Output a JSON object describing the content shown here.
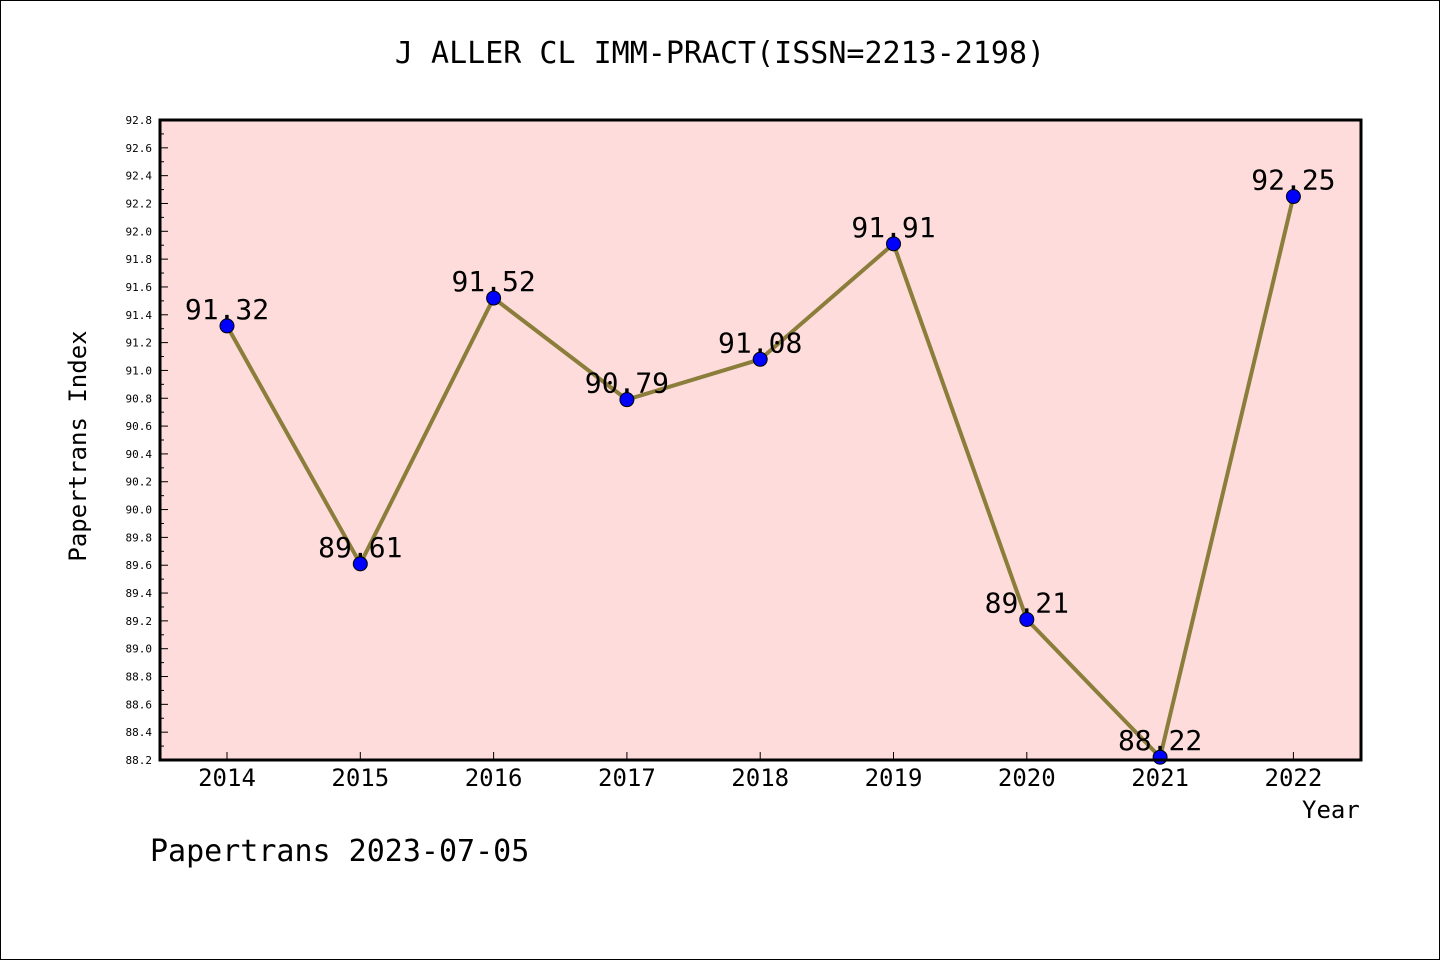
{
  "chart_data": {
    "type": "line",
    "title": "J ALLER CL IMM-PRACT(ISSN=2213-2198)",
    "xlabel": "Year",
    "ylabel": "Papertrans Index",
    "categories": [
      "2014",
      "2015",
      "2016",
      "2017",
      "2018",
      "2019",
      "2020",
      "2021",
      "2022"
    ],
    "series": [
      {
        "values": [
          91.32,
          89.61,
          91.52,
          90.79,
          91.08,
          91.91,
          89.21,
          88.22,
          92.25
        ]
      }
    ],
    "data_labels": [
      "91.32",
      "89.61",
      "91.52",
      "90.79",
      "91.08",
      "91.91",
      "89.21",
      "88.22",
      "92.25"
    ],
    "ylim": [
      88.2,
      92.8
    ],
    "yticks": [
      "88.2",
      "88.4",
      "88.6",
      "88.8",
      "89.0",
      "89.2",
      "89.4",
      "89.6",
      "89.8",
      "90.0",
      "90.2",
      "90.4",
      "90.6",
      "90.8",
      "91.0",
      "91.2",
      "91.4",
      "91.6",
      "91.8",
      "92.0",
      "92.2",
      "92.4",
      "92.6",
      "92.8"
    ],
    "grid": false,
    "colors": {
      "background": "#fddcdb",
      "line": "#8b7d3a",
      "marker": "#0000ff"
    }
  },
  "footer": "Papertrans 2023-07-05"
}
